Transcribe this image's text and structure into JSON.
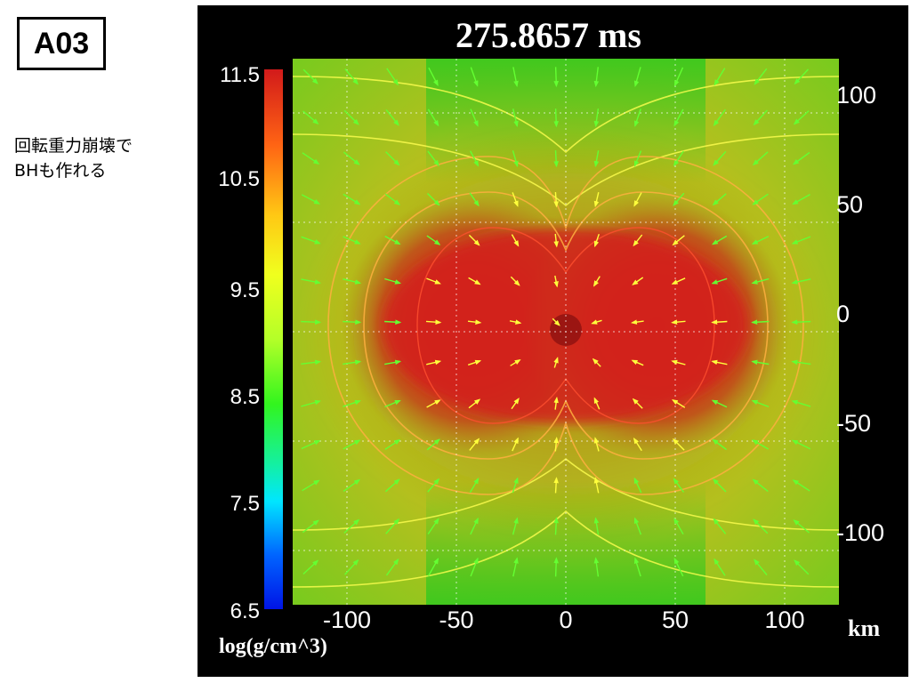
{
  "tag": "A03",
  "note_lines": [
    "回転重力崩壊で",
    "BHも作れる"
  ],
  "time_label": "275.8657 ms",
  "colorbar": {
    "ticks": [
      "11.5",
      "10.5",
      "9.5",
      "8.5",
      "7.5",
      "6.5"
    ],
    "unit": "log(g/cm^3)"
  },
  "axes": {
    "x_ticks": [
      "-100",
      "-50",
      "0",
      "50",
      "100"
    ],
    "y_ticks": [
      "100",
      "50",
      "0",
      "-50",
      "-100"
    ],
    "unit": "km"
  },
  "colors": {
    "core": "#d21a1a",
    "mid": "#b4a014",
    "outer": "#3cc81e",
    "contour": "#ffff50",
    "arrow_inner": "#ffff3c",
    "arrow_outer": "#64ff32"
  },
  "icons": [
    "velocity-arrow-icon"
  ]
}
